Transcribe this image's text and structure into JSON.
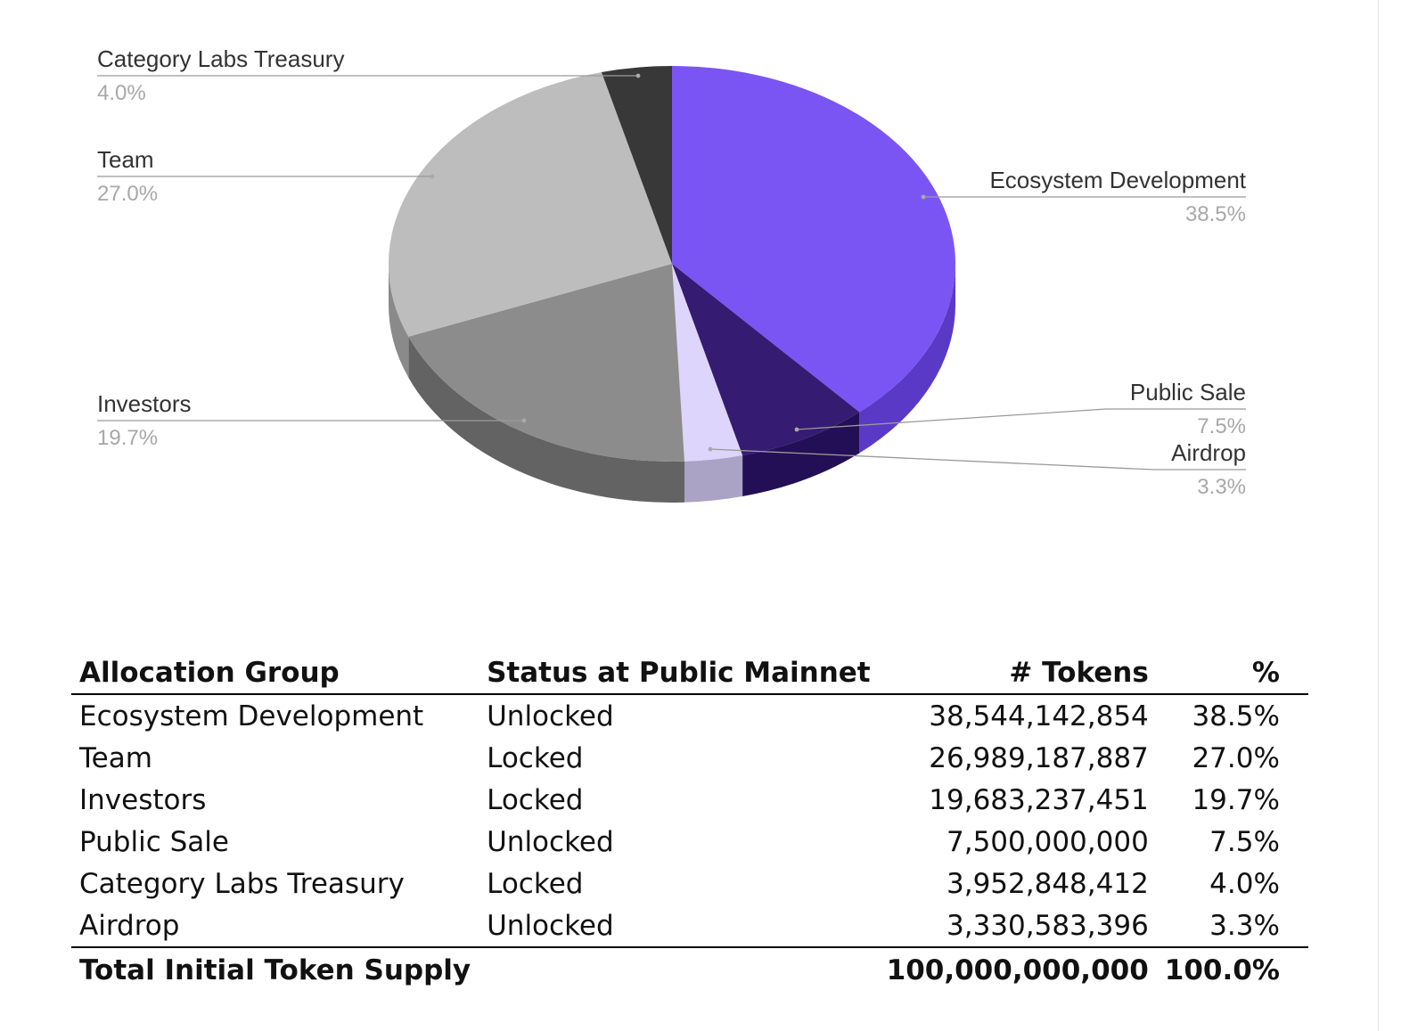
{
  "chart_data": {
    "type": "pie",
    "slices": [
      {
        "label": "Ecosystem Development",
        "value": 38.5,
        "display": "38.5%",
        "color": "#7b55f3",
        "side_color": "#5b39c7",
        "label_side": "right"
      },
      {
        "label": "Public Sale",
        "value": 7.5,
        "display": "7.5%",
        "color": "#351b72",
        "side_color": "#230f55",
        "label_side": "right"
      },
      {
        "label": "Airdrop",
        "value": 3.3,
        "display": "3.3%",
        "color": "#ddd5fb",
        "side_color": "#aaa3c6",
        "label_side": "right"
      },
      {
        "label": "Investors",
        "value": 19.7,
        "display": "19.7%",
        "color": "#8c8c8c",
        "side_color": "#636363",
        "label_side": "left"
      },
      {
        "label": "Team",
        "value": 27.0,
        "display": "27.0%",
        "color": "#bdbdbd",
        "side_color": "#8a8a8a",
        "label_side": "left"
      },
      {
        "label": "Category Labs Treasury",
        "value": 4.0,
        "display": "4.0%",
        "color": "#383838",
        "side_color": "#222222",
        "label_side": "left"
      }
    ],
    "style": "3d"
  },
  "table": {
    "headers": [
      "Allocation Group",
      "Status at Public Mainnet",
      "# Tokens",
      "%"
    ],
    "rows": [
      {
        "group": "Ecosystem Development",
        "status": "Unlocked",
        "tokens": "38,544,142,854",
        "pct": "38.5%"
      },
      {
        "group": "Team",
        "status": "Locked",
        "tokens": "26,989,187,887",
        "pct": "27.0%"
      },
      {
        "group": "Investors",
        "status": "Locked",
        "tokens": "19,683,237,451",
        "pct": "19.7%"
      },
      {
        "group": "Public Sale",
        "status": "Unlocked",
        "tokens": "7,500,000,000",
        "pct": "7.5%"
      },
      {
        "group": "Category Labs Treasury",
        "status": "Locked",
        "tokens": "3,952,848,412",
        "pct": "4.0%"
      },
      {
        "group": "Airdrop",
        "status": "Unlocked",
        "tokens": "3,330,583,396",
        "pct": "3.3%"
      }
    ],
    "total": {
      "label": "Total Initial Token Supply",
      "status": "",
      "tokens": "100,000,000,000",
      "pct": "100.0%"
    }
  }
}
